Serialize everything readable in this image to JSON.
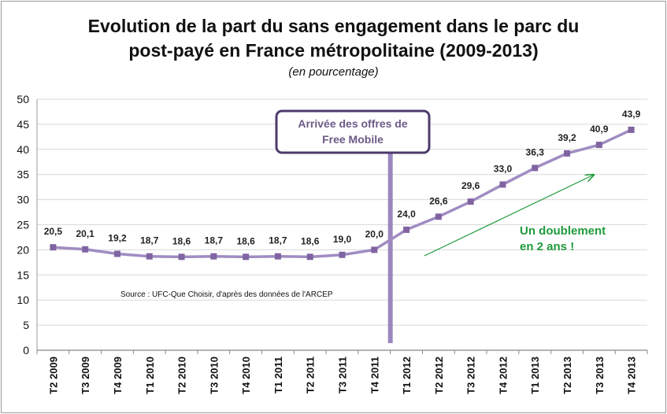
{
  "title_line1": "Evolution de la part du sans engagement dans le parc du",
  "title_line2": "post-payé en France métropolitaine (2009-2013)",
  "subtitle": "(en pourcentage)",
  "source": "Source : UFC-Que Choisir, d'après des données de l'ARCEP",
  "event_box": {
    "line1": "Arrivée des offres de",
    "line2": "Free Mobile"
  },
  "annotation": {
    "line1": "Un doublement",
    "line2": "en 2 ans !"
  },
  "colors": {
    "series": "#a08cc2",
    "marker": "#8064a2",
    "event": "#9b87bf",
    "box_border": "#4e3a6b",
    "annotation": "#1f9a3b",
    "grid": "#d9d9d9"
  },
  "chart_data": {
    "type": "line",
    "categories": [
      "T2 2009",
      "T3 2009",
      "T4 2009",
      "T1 2010",
      "T2 2010",
      "T3 2010",
      "T4 2010",
      "T1 2011",
      "T2 2011",
      "T3 2011",
      "T4 2011",
      "T1 2012",
      "T2 2012",
      "T3 2012",
      "T4 2012",
      "T1 2013",
      "T2 2013",
      "T3 2013",
      "T4 2013"
    ],
    "values": [
      20.5,
      20.1,
      19.2,
      18.7,
      18.6,
      18.7,
      18.6,
      18.7,
      18.6,
      19.0,
      20.0,
      24.0,
      26.6,
      29.6,
      33.0,
      36.3,
      39.2,
      40.9,
      43.9
    ],
    "value_labels": [
      "20,5",
      "20,1",
      "19,2",
      "18,7",
      "18,6",
      "18,7",
      "18,6",
      "18,7",
      "18,6",
      "19,0",
      "20,0",
      "24,0",
      "26,6",
      "29,6",
      "33,0",
      "36,3",
      "39,2",
      "40,9",
      "43,9"
    ],
    "ylim": [
      0,
      50
    ],
    "yticks": [
      0,
      5,
      10,
      15,
      20,
      25,
      30,
      35,
      40,
      45,
      50
    ],
    "grid": true,
    "legend": false,
    "event_category": "T4 2011"
  }
}
